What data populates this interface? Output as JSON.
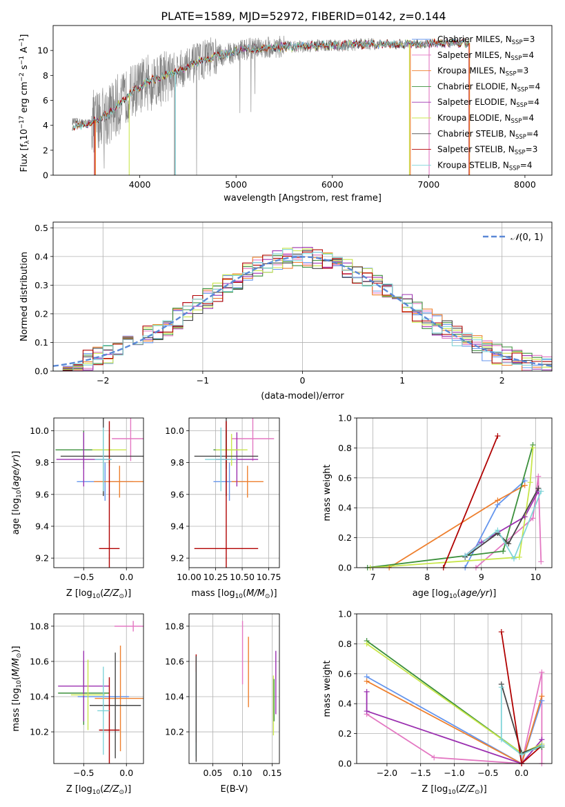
{
  "figure": {
    "title": "PLATE=1589, MJD=52972, FIBERID=0142, z=0.144"
  },
  "colors": {
    "Chabrier MILES": "#6495ed",
    "Salpeter MILES": "#e377c2",
    "Kroupa MILES": "#ee7f2d",
    "Chabrier ELODIE": "#3a8f3a",
    "Salpeter ELODIE": "#9b30b0",
    "Kroupa ELODIE": "#c8e64a",
    "Chabrier STELIB": "#444444",
    "Salpeter STELIB": "#b00000",
    "Kroupa STELIB": "#7fd4d8"
  },
  "chart_data": [
    {
      "id": "spectrum",
      "type": "line",
      "xlabel": "wavelength [Angstrom, rest frame]",
      "ylabel": "Flux [f_λ 10^-17 erg cm^-2 s^-1 A^-1]",
      "xlim": [
        3100,
        8280
      ],
      "ylim": [
        0,
        12
      ],
      "xticks": [
        4000,
        5000,
        6000,
        7000,
        8000
      ],
      "yticks": [
        0,
        2,
        4,
        6,
        8,
        10
      ],
      "legend": {
        "placement": "top-right",
        "entries": [
          {
            "model": "Chabrier MILES",
            "nssp": "3"
          },
          {
            "model": "Salpeter MILES",
            "nssp": "4"
          },
          {
            "model": "Kroupa MILES",
            "nssp": "3"
          },
          {
            "model": "Chabrier ELODIE",
            "nssp": "4"
          },
          {
            "model": "Salpeter ELODIE",
            "nssp": "4"
          },
          {
            "model": "Kroupa ELODIE",
            "nssp": "4"
          },
          {
            "model": "Chabrier STELIB",
            "nssp": "4"
          },
          {
            "model": "Salpeter STELIB",
            "nssp": "3"
          },
          {
            "model": "Kroupa STELIB",
            "nssp": "4"
          }
        ]
      },
      "data_continuum": [
        [
          3300,
          4.3
        ],
        [
          3500,
          4.2
        ],
        [
          3700,
          5.0
        ],
        [
          3900,
          6.6
        ],
        [
          4100,
          7.6
        ],
        [
          4300,
          8.1
        ],
        [
          4500,
          8.7
        ],
        [
          4700,
          9.4
        ],
        [
          4900,
          9.7
        ],
        [
          5100,
          10.1
        ],
        [
          5300,
          10.2
        ],
        [
          5500,
          10.3
        ],
        [
          5700,
          10.3
        ],
        [
          5900,
          10.4
        ],
        [
          6100,
          10.4
        ],
        [
          6300,
          10.5
        ],
        [
          6500,
          10.5
        ],
        [
          6700,
          10.5
        ],
        [
          6900,
          10.5
        ],
        [
          7100,
          10.6
        ],
        [
          7300,
          10.6
        ],
        [
          7400,
          10.6
        ]
      ]
    },
    {
      "id": "residuals",
      "type": "line",
      "xlabel": "(data-model)/error",
      "ylabel": "Normed distribution",
      "xlim": [
        -2.5,
        2.5
      ],
      "ylim": [
        0,
        0.52
      ],
      "xticks": [
        -2,
        -1,
        0,
        1,
        2
      ],
      "yticks": [
        0.0,
        0.1,
        0.2,
        0.3,
        0.4,
        0.5
      ],
      "grid": true,
      "legend": {
        "placement": "top-right",
        "label": "N(0,1)"
      },
      "reference_curve": "standard normal N(0,1), peak 0.399 at 0"
    },
    {
      "id": "age-vs-Z",
      "type": "scatter",
      "xlabel": "Z [log10(Z/Z⊙)]",
      "ylabel": "age [log10(age/yr)]",
      "xlim": [
        -0.85,
        0.2
      ],
      "ylim": [
        9.14,
        10.08
      ],
      "xticks": [
        -0.5,
        0.0
      ],
      "yticks": [
        9.2,
        9.4,
        9.6,
        9.8,
        10.0
      ],
      "grid": true,
      "points": [
        {
          "model": "Chabrier MILES",
          "x": -0.25,
          "y": 9.68,
          "xerr": 0.33,
          "yerr": 0.12
        },
        {
          "model": "Salpeter MILES",
          "x": 0.05,
          "y": 9.95,
          "xerr": 0.22,
          "yerr": 0.14
        },
        {
          "model": "Kroupa MILES",
          "x": -0.08,
          "y": 9.68,
          "xerr": 0.3,
          "yerr": 0.1
        },
        {
          "model": "Chabrier ELODIE",
          "x": -0.5,
          "y": 9.88,
          "xerr": 0.33,
          "yerr": 0.12
        },
        {
          "model": "Salpeter ELODIE",
          "x": -0.5,
          "y": 9.82,
          "xerr": 0.32,
          "yerr": 0.17
        },
        {
          "model": "Kroupa ELODIE",
          "x": -0.2,
          "y": 9.88,
          "xerr": 0.2,
          "yerr": 0.1
        },
        {
          "model": "Chabrier STELIB",
          "x": -0.27,
          "y": 9.84,
          "xerr": 0.5,
          "yerr": 0.25
        },
        {
          "model": "Salpeter STELIB",
          "x": -0.2,
          "y": 9.26,
          "xerr": 0.12,
          "yerr": 0.8
        },
        {
          "model": "Kroupa STELIB",
          "x": -0.27,
          "y": 9.82,
          "xerr": 0.1,
          "yerr": 0.2
        }
      ]
    },
    {
      "id": "age-vs-mass",
      "type": "scatter",
      "xlabel": "mass [log10(M/M⊙)]",
      "ylabel": "",
      "xlim": [
        10.0,
        10.85
      ],
      "ylim": [
        9.14,
        10.08
      ],
      "xticks": [
        10.0,
        10.25,
        10.5,
        10.75
      ],
      "yticks": [
        9.2,
        9.4,
        9.6,
        9.8,
        10.0
      ],
      "grid": true,
      "points": [
        {
          "model": "Chabrier MILES",
          "x": 10.38,
          "y": 9.68,
          "xerr": 0.15,
          "yerr": 0.12
        },
        {
          "model": "Salpeter MILES",
          "x": 10.6,
          "y": 9.95,
          "xerr": 0.2,
          "yerr": 0.14
        },
        {
          "model": "Kroupa MILES",
          "x": 10.55,
          "y": 9.68,
          "xerr": 0.15,
          "yerr": 0.1
        },
        {
          "model": "Chabrier ELODIE",
          "x": 10.35,
          "y": 9.88,
          "xerr": 0.12,
          "yerr": 0.12
        },
        {
          "model": "Salpeter ELODIE",
          "x": 10.45,
          "y": 9.82,
          "xerr": 0.2,
          "yerr": 0.17
        },
        {
          "model": "Kroupa ELODIE",
          "x": 10.4,
          "y": 9.88,
          "xerr": 0.15,
          "yerr": 0.1
        },
        {
          "model": "Chabrier STELIB",
          "x": 10.35,
          "y": 9.84,
          "xerr": 0.3,
          "yerr": 0.25
        },
        {
          "model": "Salpeter STELIB",
          "x": 10.35,
          "y": 9.26,
          "xerr": 0.3,
          "yerr": 0.8
        },
        {
          "model": "Kroupa STELIB",
          "x": 10.3,
          "y": 9.82,
          "xerr": 0.15,
          "yerr": 0.2
        }
      ]
    },
    {
      "id": "weight-vs-age",
      "type": "line",
      "xlabel": "age [log10(age/yr)]",
      "ylabel": "mass weight",
      "xlim": [
        6.7,
        10.3
      ],
      "ylim": [
        0,
        1.0
      ],
      "xticks": [
        7,
        8,
        9,
        10
      ],
      "yticks": [
        0.0,
        0.2,
        0.4,
        0.6,
        0.8,
        1.0
      ],
      "grid": true,
      "series": [
        {
          "model": "Chabrier MILES",
          "x": [
            8.7,
            9.3,
            9.8
          ],
          "y": [
            0.0,
            0.42,
            0.58
          ]
        },
        {
          "model": "Salpeter MILES",
          "x": [
            8.9,
            9.95,
            10.05,
            10.1
          ],
          "y": [
            0.0,
            0.33,
            0.61,
            0.04
          ]
        },
        {
          "model": "Kroupa MILES",
          "x": [
            7.3,
            9.3,
            9.8
          ],
          "y": [
            0.0,
            0.45,
            0.55
          ]
        },
        {
          "model": "Chabrier ELODIE",
          "x": [
            6.9,
            9.4,
            9.95
          ],
          "y": [
            0.0,
            0.11,
            0.82
          ]
        },
        {
          "model": "Salpeter ELODIE",
          "x": [
            8.7,
            9.0,
            9.8,
            10.05
          ],
          "y": [
            0.08,
            0.17,
            0.34,
            0.51
          ]
        },
        {
          "model": "Kroupa ELODIE",
          "x": [
            6.95,
            9.7,
            9.9,
            9.95
          ],
          "y": [
            0.0,
            0.07,
            0.57,
            0.8
          ]
        },
        {
          "model": "Chabrier STELIB",
          "x": [
            8.7,
            9.3,
            9.5,
            10.05
          ],
          "y": [
            0.07,
            0.23,
            0.16,
            0.53
          ]
        },
        {
          "model": "Salpeter STELIB",
          "x": [
            8.3,
            9.3
          ],
          "y": [
            0.0,
            0.88
          ]
        },
        {
          "model": "Kroupa STELIB",
          "x": [
            8.7,
            9.3,
            9.6,
            10.1
          ],
          "y": [
            0.08,
            0.25,
            0.06,
            0.51
          ]
        }
      ]
    },
    {
      "id": "mass-vs-Z",
      "type": "scatter",
      "xlabel": "Z [log10(Z/Z⊙)]",
      "ylabel": "mass [log10(M/M⊙)]",
      "xlim": [
        -0.85,
        0.2
      ],
      "ylim": [
        10.02,
        10.87
      ],
      "xticks": [
        -0.5,
        0.0
      ],
      "yticks": [
        10.2,
        10.4,
        10.6,
        10.8
      ],
      "grid": true,
      "points": [
        {
          "model": "Chabrier MILES",
          "x": -0.27,
          "y": 10.4,
          "xerr": 0.3,
          "yerr": 0.1
        },
        {
          "model": "Salpeter MILES",
          "x": 0.08,
          "y": 10.8,
          "xerr": 0.22,
          "yerr": 0.03
        },
        {
          "model": "Kroupa MILES",
          "x": -0.07,
          "y": 10.39,
          "xerr": 0.3,
          "yerr": 0.3
        },
        {
          "model": "Chabrier ELODIE",
          "x": -0.5,
          "y": 10.42,
          "xerr": 0.3,
          "yerr": 0.18
        },
        {
          "model": "Salpeter ELODIE",
          "x": -0.5,
          "y": 10.46,
          "xerr": 0.3,
          "yerr": 0.2
        },
        {
          "model": "Kroupa ELODIE",
          "x": -0.45,
          "y": 10.41,
          "xerr": 0.2,
          "yerr": 0.2
        },
        {
          "model": "Chabrier STELIB",
          "x": -0.13,
          "y": 10.35,
          "xerr": 0.3,
          "yerr": 0.3
        },
        {
          "model": "Salpeter STELIB",
          "x": -0.2,
          "y": 10.21,
          "xerr": 0.12,
          "yerr": 0.3
        },
        {
          "model": "Kroupa STELIB",
          "x": -0.27,
          "y": 10.32,
          "xerr": 0.07,
          "yerr": 0.25
        }
      ]
    },
    {
      "id": "mass-vs-EBV",
      "type": "scatter",
      "xlabel": "E(B-V)",
      "ylabel": "",
      "xlim": [
        0.01,
        0.162
      ],
      "ylim": [
        10.02,
        10.87
      ],
      "xticks": [
        0.05,
        0.1,
        0.15
      ],
      "yticks": [
        10.2,
        10.4,
        10.6,
        10.8
      ],
      "grid": true,
      "points": [
        {
          "model": "Salpeter MILES",
          "x": 0.1,
          "y": 10.65,
          "xerr": 0.0,
          "yerr": 0.18
        },
        {
          "model": "Kroupa MILES",
          "x": 0.11,
          "y": 10.54,
          "xerr": 0.0,
          "yerr": 0.2
        },
        {
          "model": "Salpeter STELIB",
          "x": 0.022,
          "y": 10.39,
          "xerr": 0.0,
          "yerr": 0.25
        },
        {
          "model": "Kroupa STELIB",
          "x": 0.022,
          "y": 10.3,
          "xerr": 0.0,
          "yerr": 0.24
        },
        {
          "model": "Chabrier STELIB",
          "x": 0.022,
          "y": 10.33,
          "xerr": 0.0,
          "yerr": 0.3
        },
        {
          "model": "Kroupa ELODIE",
          "x": 0.152,
          "y": 10.35,
          "xerr": 0.0,
          "yerr": 0.17
        },
        {
          "model": "Salpeter ELODIE",
          "x": 0.156,
          "y": 10.48,
          "xerr": 0.0,
          "yerr": 0.18
        },
        {
          "model": "Chabrier ELODIE",
          "x": 0.153,
          "y": 10.38,
          "xerr": 0.0,
          "yerr": 0.12
        }
      ]
    },
    {
      "id": "weight-vs-Z",
      "type": "line",
      "xlabel": "Z [log10(Z/Z⊙)]",
      "ylabel": "mass weight",
      "xlim": [
        -2.45,
        0.45
      ],
      "ylim": [
        0,
        1.0
      ],
      "xticks": [
        -2.0,
        -1.5,
        -1.0,
        -0.5,
        0.0
      ],
      "yticks": [
        0.0,
        0.2,
        0.4,
        0.6,
        0.8,
        1.0
      ],
      "grid": true,
      "series": [
        {
          "model": "Chabrier MILES",
          "x": [
            -2.3,
            0.0,
            0.3
          ],
          "y": [
            0.58,
            0.0,
            0.42
          ]
        },
        {
          "model": "Salpeter MILES",
          "x": [
            -2.3,
            -1.3,
            0.0,
            0.3,
            0.3
          ],
          "y": [
            0.33,
            0.04,
            0.0,
            0.61,
            0.0
          ]
        },
        {
          "model": "Kroupa MILES",
          "x": [
            -2.3,
            0.0,
            0.3
          ],
          "y": [
            0.55,
            0.0,
            0.45
          ]
        },
        {
          "model": "Chabrier ELODIE",
          "x": [
            -2.3,
            0.0,
            0.3
          ],
          "y": [
            0.82,
            0.07,
            0.11
          ]
        },
        {
          "model": "Salpeter ELODIE",
          "x": [
            -2.3,
            -2.3,
            0.0,
            0.3
          ],
          "y": [
            0.48,
            0.35,
            0.0,
            0.16
          ]
        },
        {
          "model": "Kroupa ELODIE",
          "x": [
            -2.3,
            0.0,
            0.3
          ],
          "y": [
            0.8,
            0.07,
            0.13
          ]
        },
        {
          "model": "Chabrier STELIB",
          "x": [
            -0.3,
            0.0,
            0.3
          ],
          "y": [
            0.53,
            0.07,
            0.12
          ]
        },
        {
          "model": "Salpeter STELIB",
          "x": [
            -0.3,
            0.0,
            0.3
          ],
          "y": [
            0.88,
            0.0,
            0.12
          ]
        },
        {
          "model": "Kroupa STELIB",
          "x": [
            -0.3,
            -0.3,
            0.0,
            0.3
          ],
          "y": [
            0.51,
            0.16,
            0.06,
            0.12
          ]
        }
      ]
    }
  ]
}
